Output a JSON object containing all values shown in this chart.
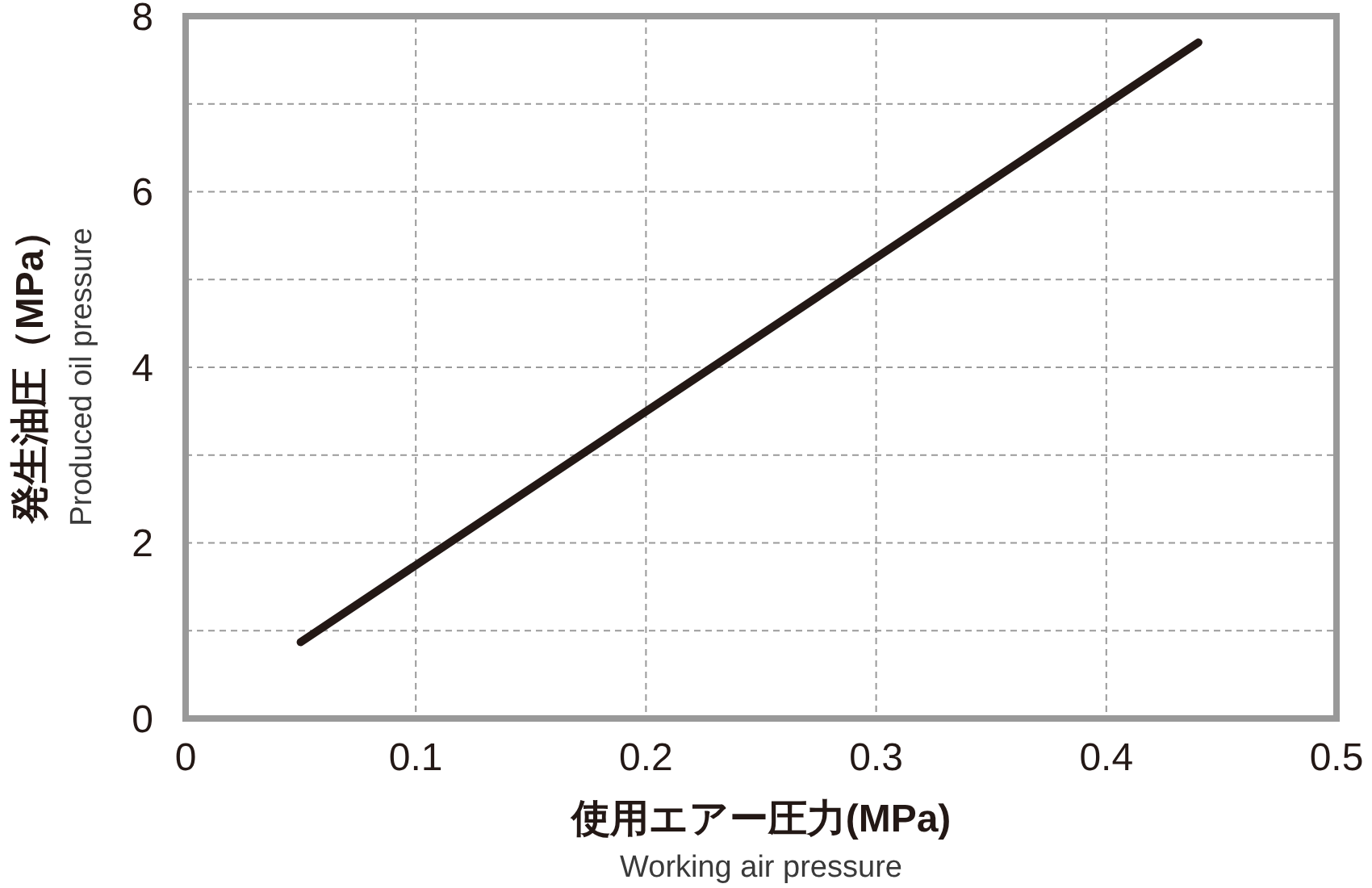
{
  "chart_data": {
    "type": "line",
    "xlabel": "使用エアー圧力(MPa)\nWorking air pressure",
    "ylabel": "発生油圧（MPa）\nProduced oil pressure",
    "x": [
      0.05,
      0.44
    ],
    "series": [
      {
        "color": "#231815",
        "values": [
          0.87,
          7.7
        ]
      }
    ],
    "xlim": [
      0,
      0.5
    ],
    "xticks": [
      0,
      0.1,
      0.2,
      0.3,
      0.4,
      0.5
    ],
    "ylim": [
      0,
      8
    ],
    "yticks": [
      0,
      {
        "value": 1,
        "label": null
      },
      2,
      {
        "value": 3,
        "label": null
      },
      4,
      {
        "value": 5,
        "label": null
      },
      6,
      {
        "value": 7,
        "label": null
      },
      8
    ],
    "grid": true,
    "marker": "none",
    "line_style": "solid"
  }
}
